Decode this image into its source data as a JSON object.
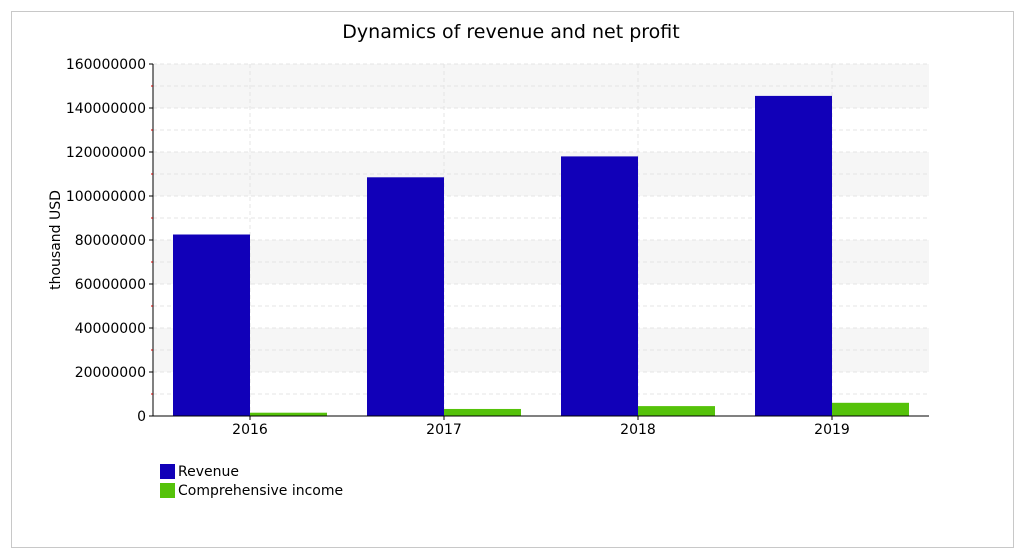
{
  "chart_data": {
    "type": "bar",
    "title": "Dynamics of revenue and net profit",
    "xlabel": "",
    "ylabel": "thousand USD",
    "categories": [
      "2016",
      "2017",
      "2018",
      "2019"
    ],
    "ylim": [
      0,
      160000000
    ],
    "yticks": [
      0,
      20000000,
      40000000,
      60000000,
      80000000,
      100000000,
      120000000,
      140000000,
      160000000
    ],
    "ytick_labels": [
      "0",
      "20000000",
      "40000000",
      "60000000",
      "80000000",
      "100000000",
      "120000000",
      "140000000",
      "160000000"
    ],
    "grid": true,
    "legend_position": "bottom-left",
    "series": [
      {
        "name": "Revenue",
        "color": "#1100b8",
        "values": [
          82500000,
          108500000,
          118000000,
          145500000
        ]
      },
      {
        "name": "Comprehensive income",
        "color": "#55c20a",
        "values": [
          1500000,
          3200000,
          4500000,
          6000000
        ]
      }
    ]
  }
}
